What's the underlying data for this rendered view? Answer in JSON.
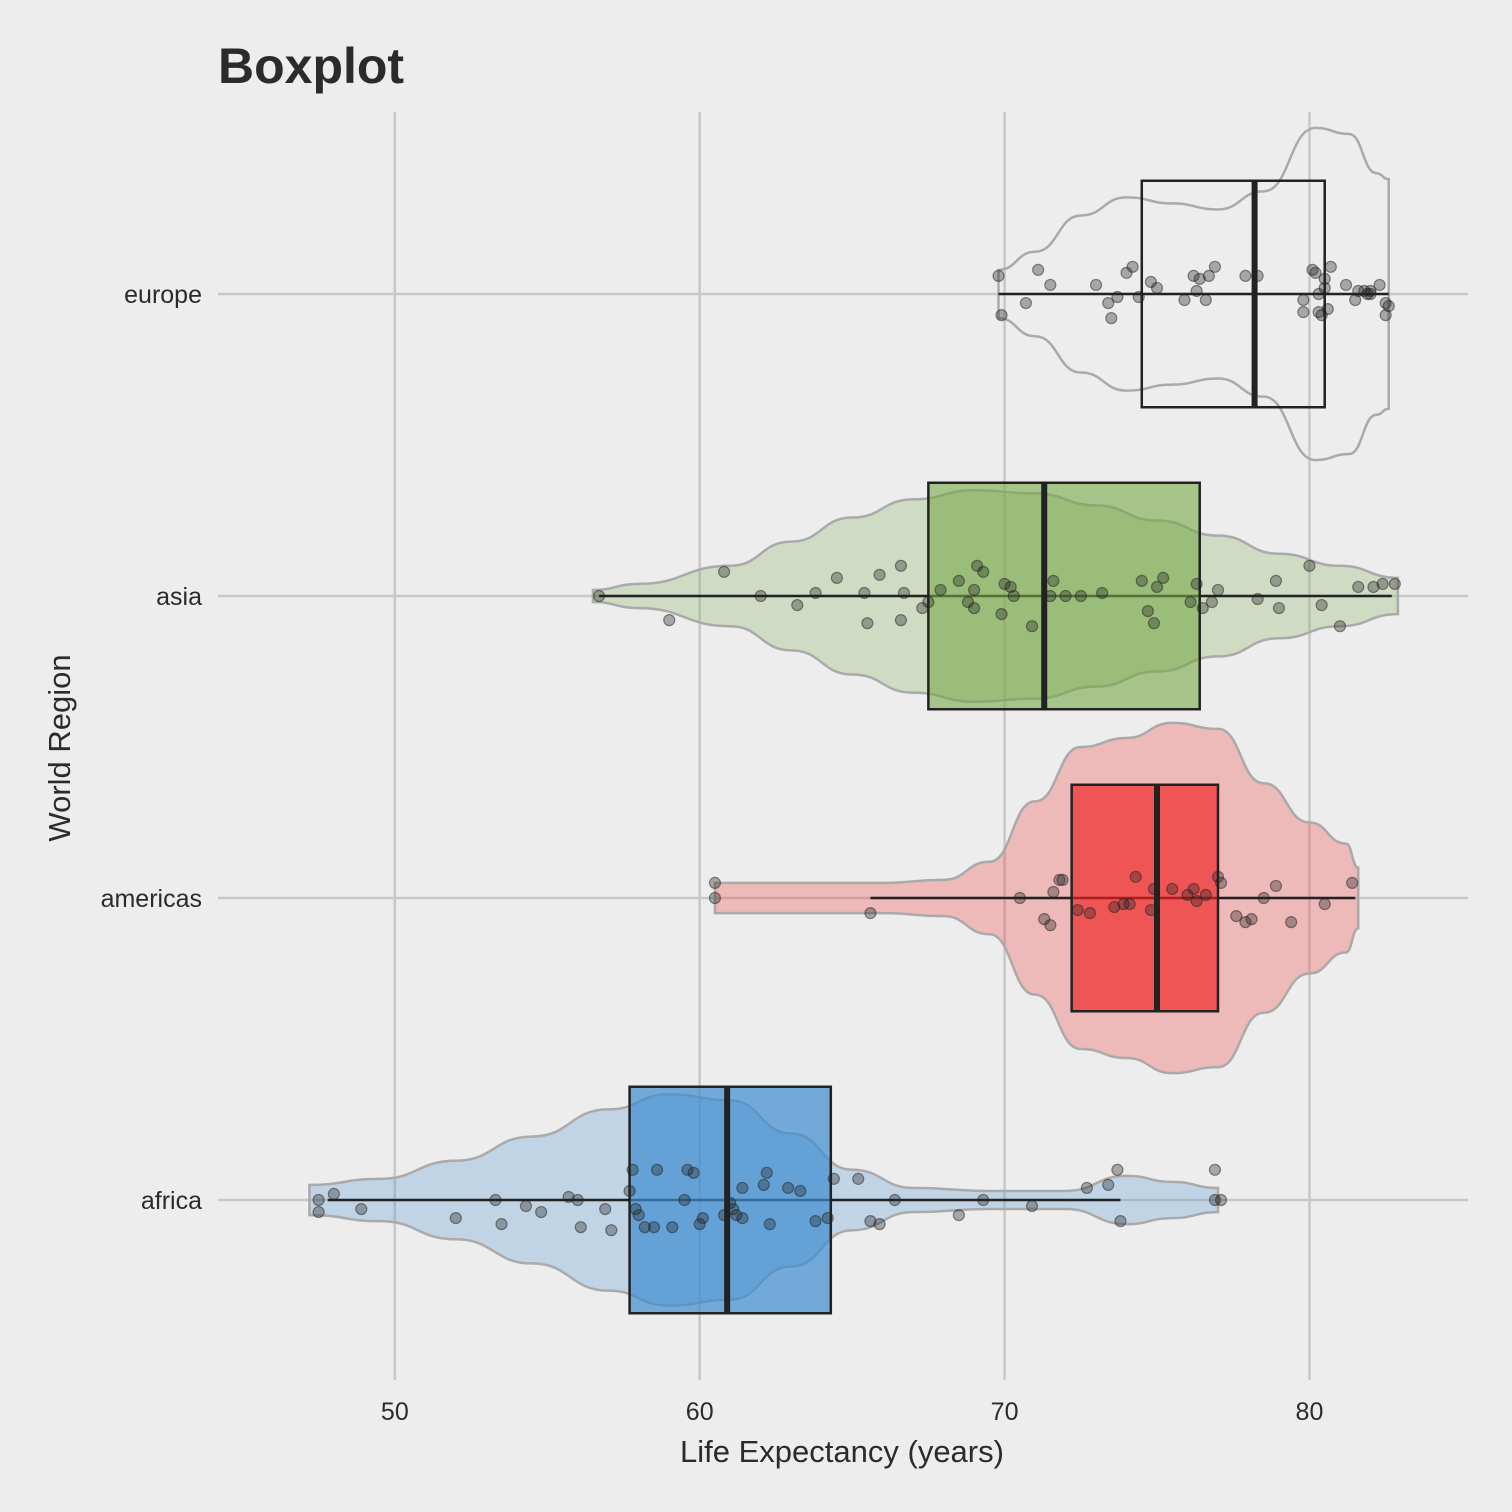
{
  "chart_data": {
    "type": "boxplot",
    "title": "Boxplot",
    "xlabel": "Life Expectancy (years)",
    "ylabel": "World Region",
    "xlim": [
      44.2,
      85.2
    ],
    "x_ticks": [
      50,
      60,
      70,
      80
    ],
    "grid": true,
    "categories": [
      "africa",
      "americas",
      "asia",
      "europe"
    ],
    "series": [
      {
        "name": "europe",
        "color": "#ffffff",
        "box_alpha": 0.0,
        "stats": {
          "min": 69.8,
          "q1": 74.5,
          "median": 78.2,
          "q3": 80.5,
          "max": 82.6
        },
        "violin": [
          [
            69.8,
            0.08
          ],
          [
            71,
            0.14
          ],
          [
            72.5,
            0.26
          ],
          [
            74,
            0.32
          ],
          [
            75.5,
            0.3
          ],
          [
            77,
            0.28
          ],
          [
            78.5,
            0.34
          ],
          [
            80.2,
            0.55
          ],
          [
            81.3,
            0.53
          ],
          [
            82.2,
            0.4
          ],
          [
            82.6,
            0.38
          ]
        ],
        "points": [
          [
            69.8,
            0.06
          ],
          [
            69.9,
            -0.07
          ],
          [
            70.7,
            -0.03
          ],
          [
            71.1,
            0.08
          ],
          [
            71.5,
            0.03
          ],
          [
            73.0,
            0.03
          ],
          [
            73.4,
            -0.03
          ],
          [
            73.5,
            -0.08
          ],
          [
            73.7,
            -0.01
          ],
          [
            74.0,
            0.07
          ],
          [
            74.2,
            0.09
          ],
          [
            74.4,
            -0.01
          ],
          [
            74.8,
            0.04
          ],
          [
            75.0,
            0.02
          ],
          [
            75.9,
            -0.02
          ],
          [
            76.2,
            0.06
          ],
          [
            76.3,
            0.01
          ],
          [
            76.4,
            0.05
          ],
          [
            76.6,
            -0.02
          ],
          [
            76.7,
            0.06
          ],
          [
            76.9,
            0.09
          ],
          [
            77.9,
            0.06
          ],
          [
            78.3,
            0.06
          ],
          [
            79.8,
            -0.02
          ],
          [
            79.8,
            -0.06
          ],
          [
            80.1,
            0.08
          ],
          [
            80.2,
            0.07
          ],
          [
            80.3,
            -0.06
          ],
          [
            80.3,
            0.0
          ],
          [
            80.4,
            -0.07
          ],
          [
            80.5,
            0.05
          ],
          [
            80.6,
            -0.05
          ],
          [
            80.5,
            0.02
          ],
          [
            80.7,
            0.09
          ],
          [
            81.2,
            0.03
          ],
          [
            81.6,
            0.01
          ],
          [
            81.8,
            0.01
          ],
          [
            81.9,
            0.0
          ],
          [
            82.0,
            0.0
          ],
          [
            82.3,
            0.03
          ],
          [
            82.5,
            -0.03
          ],
          [
            82.6,
            -0.04
          ],
          [
            82.5,
            -0.07
          ],
          [
            82.0,
            0.01
          ],
          [
            81.5,
            -0.02
          ]
        ]
      },
      {
        "name": "asia",
        "color": "#76a848",
        "box_alpha": 0.6,
        "stats": {
          "min": 56.7,
          "q1": 67.5,
          "median": 71.3,
          "q3": 76.4,
          "max": 82.7
        },
        "violin": [
          [
            56.5,
            0.02
          ],
          [
            58,
            0.04
          ],
          [
            61,
            0.1
          ],
          [
            63,
            0.18
          ],
          [
            65,
            0.26
          ],
          [
            67,
            0.32
          ],
          [
            69,
            0.35
          ],
          [
            71,
            0.34
          ],
          [
            73,
            0.3
          ],
          [
            75,
            0.25
          ],
          [
            77,
            0.2
          ],
          [
            79,
            0.14
          ],
          [
            81,
            0.1
          ],
          [
            82.9,
            0.06
          ]
        ],
        "points": [
          [
            56.7,
            0.0
          ],
          [
            59.0,
            -0.08
          ],
          [
            60.8,
            0.08
          ],
          [
            62.0,
            0.0
          ],
          [
            63.2,
            -0.03
          ],
          [
            63.8,
            0.01
          ],
          [
            64.5,
            0.06
          ],
          [
            65.4,
            0.01
          ],
          [
            65.5,
            -0.09
          ],
          [
            65.9,
            0.07
          ],
          [
            66.6,
            -0.08
          ],
          [
            66.6,
            0.1
          ],
          [
            66.7,
            0.01
          ],
          [
            67.3,
            -0.04
          ],
          [
            67.5,
            -0.02
          ],
          [
            67.9,
            0.02
          ],
          [
            68.5,
            0.05
          ],
          [
            68.8,
            -0.02
          ],
          [
            69.0,
            0.02
          ],
          [
            69.0,
            -0.04
          ],
          [
            69.1,
            0.1
          ],
          [
            69.3,
            0.08
          ],
          [
            69.9,
            -0.06
          ],
          [
            70.0,
            0.04
          ],
          [
            70.2,
            0.03
          ],
          [
            70.3,
            0.0
          ],
          [
            70.9,
            -0.1
          ],
          [
            71.5,
            0.0
          ],
          [
            71.6,
            0.05
          ],
          [
            72.0,
            0.0
          ],
          [
            72.5,
            0.0
          ],
          [
            73.2,
            0.01
          ],
          [
            74.5,
            0.05
          ],
          [
            74.7,
            -0.05
          ],
          [
            74.9,
            -0.09
          ],
          [
            75.0,
            0.03
          ],
          [
            75.2,
            0.06
          ],
          [
            76.1,
            -0.02
          ],
          [
            76.3,
            0.04
          ],
          [
            76.5,
            -0.04
          ],
          [
            76.8,
            -0.02
          ],
          [
            77.0,
            0.02
          ],
          [
            78.3,
            -0.01
          ],
          [
            78.9,
            0.05
          ],
          [
            79.0,
            -0.04
          ],
          [
            80.0,
            0.1
          ],
          [
            80.4,
            -0.03
          ],
          [
            81.0,
            -0.1
          ],
          [
            81.6,
            0.03
          ],
          [
            82.1,
            0.03
          ],
          [
            82.4,
            0.04
          ],
          [
            82.8,
            0.04
          ]
        ]
      },
      {
        "name": "americas",
        "color": "#f01f1f",
        "box_alpha": 0.65,
        "stats": {
          "min": 65.6,
          "q1": 72.2,
          "median": 75.0,
          "q3": 77.0,
          "max": 81.5
        },
        "violin": [
          [
            60.5,
            0.05
          ],
          [
            63,
            0.05
          ],
          [
            66,
            0.05
          ],
          [
            68,
            0.06
          ],
          [
            69.5,
            0.12
          ],
          [
            71,
            0.32
          ],
          [
            72.5,
            0.5
          ],
          [
            74,
            0.53
          ],
          [
            75.5,
            0.58
          ],
          [
            77,
            0.56
          ],
          [
            78.5,
            0.38
          ],
          [
            80,
            0.25
          ],
          [
            81.2,
            0.18
          ],
          [
            81.6,
            0.1
          ]
        ],
        "points": [
          [
            60.5,
            0.05
          ],
          [
            60.5,
            0.0
          ],
          [
            65.6,
            -0.05
          ],
          [
            70.5,
            0.0
          ],
          [
            71.3,
            -0.07
          ],
          [
            71.5,
            -0.09
          ],
          [
            71.6,
            0.02
          ],
          [
            71.8,
            0.06
          ],
          [
            71.9,
            0.06
          ],
          [
            72.4,
            -0.04
          ],
          [
            72.8,
            -0.05
          ],
          [
            73.6,
            -0.03
          ],
          [
            73.9,
            -0.02
          ],
          [
            74.1,
            -0.02
          ],
          [
            74.3,
            0.07
          ],
          [
            74.8,
            -0.04
          ],
          [
            74.9,
            0.03
          ],
          [
            75.5,
            0.03
          ],
          [
            76.0,
            0.01
          ],
          [
            76.2,
            0.03
          ],
          [
            76.3,
            -0.01
          ],
          [
            76.6,
            0.01
          ],
          [
            77.0,
            0.07
          ],
          [
            77.1,
            0.05
          ],
          [
            77.6,
            -0.06
          ],
          [
            77.9,
            -0.08
          ],
          [
            78.1,
            -0.07
          ],
          [
            78.5,
            0.0
          ],
          [
            78.9,
            0.04
          ],
          [
            79.4,
            -0.08
          ],
          [
            80.5,
            -0.02
          ],
          [
            81.4,
            0.05
          ]
        ]
      },
      {
        "name": "africa",
        "color": "#3d8cd0",
        "box_alpha": 0.7,
        "stats": {
          "min": 47.8,
          "q1": 57.7,
          "median": 60.9,
          "q3": 64.3,
          "max": 73.8
        },
        "violin": [
          [
            47.2,
            0.05
          ],
          [
            49.5,
            0.07
          ],
          [
            52,
            0.13
          ],
          [
            54.5,
            0.21
          ],
          [
            57,
            0.3
          ],
          [
            59,
            0.35
          ],
          [
            61,
            0.33
          ],
          [
            63,
            0.22
          ],
          [
            65,
            0.1
          ],
          [
            67,
            0.04
          ],
          [
            69.5,
            0.03
          ],
          [
            72,
            0.03
          ],
          [
            74,
            0.08
          ],
          [
            75.5,
            0.06
          ],
          [
            77.0,
            0.04
          ]
        ],
        "points": [
          [
            47.5,
            0.0
          ],
          [
            47.5,
            -0.04
          ],
          [
            48.0,
            0.02
          ],
          [
            48.9,
            -0.03
          ],
          [
            52.0,
            -0.06
          ],
          [
            53.3,
            0.0
          ],
          [
            53.5,
            -0.08
          ],
          [
            54.3,
            -0.02
          ],
          [
            54.8,
            -0.04
          ],
          [
            55.7,
            0.01
          ],
          [
            56.0,
            0.0
          ],
          [
            56.1,
            -0.09
          ],
          [
            56.9,
            -0.03
          ],
          [
            57.1,
            -0.1
          ],
          [
            57.7,
            0.03
          ],
          [
            57.8,
            0.1
          ],
          [
            57.9,
            -0.03
          ],
          [
            58.0,
            -0.05
          ],
          [
            58.2,
            -0.09
          ],
          [
            58.5,
            -0.09
          ],
          [
            58.6,
            0.1
          ],
          [
            59.1,
            -0.09
          ],
          [
            59.5,
            0.0
          ],
          [
            59.6,
            0.1
          ],
          [
            59.8,
            0.09
          ],
          [
            60.0,
            -0.08
          ],
          [
            60.1,
            -0.06
          ],
          [
            60.8,
            -0.05
          ],
          [
            61.0,
            -0.01
          ],
          [
            61.1,
            -0.03
          ],
          [
            61.2,
            -0.05
          ],
          [
            61.4,
            -0.06
          ],
          [
            61.4,
            0.04
          ],
          [
            62.1,
            0.05
          ],
          [
            62.2,
            0.09
          ],
          [
            62.3,
            -0.08
          ],
          [
            62.9,
            0.04
          ],
          [
            63.3,
            0.03
          ],
          [
            63.8,
            -0.07
          ],
          [
            64.2,
            -0.06
          ],
          [
            64.4,
            0.07
          ],
          [
            65.2,
            0.07
          ],
          [
            65.6,
            -0.07
          ],
          [
            65.9,
            -0.08
          ],
          [
            66.4,
            0.0
          ],
          [
            68.5,
            -0.05
          ],
          [
            69.3,
            0.0
          ],
          [
            70.9,
            -0.02
          ],
          [
            72.7,
            0.04
          ],
          [
            73.4,
            0.05
          ],
          [
            73.7,
            0.1
          ],
          [
            73.8,
            -0.07
          ],
          [
            76.9,
            0.1
          ],
          [
            76.9,
            0.0
          ],
          [
            77.1,
            0.0
          ]
        ]
      }
    ]
  }
}
